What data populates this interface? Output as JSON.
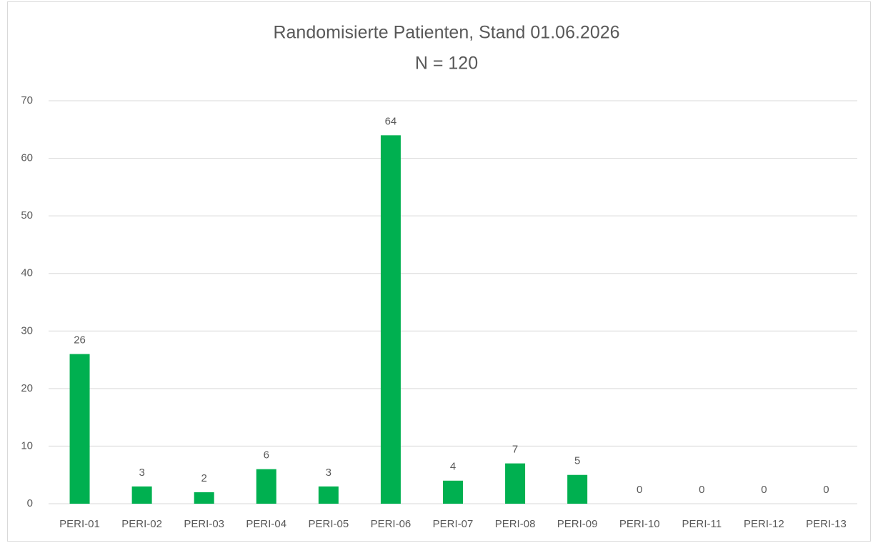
{
  "chart_data": {
    "type": "bar",
    "title": "Randomisierte Patienten, Stand 01.06.2026",
    "subtitle": "N = 120",
    "categories": [
      "PERI-01",
      "PERI-02",
      "PERI-03",
      "PERI-04",
      "PERI-05",
      "PERI-06",
      "PERI-07",
      "PERI-08",
      "PERI-09",
      "PERI-10",
      "PERI-11",
      "PERI-12",
      "PERI-13"
    ],
    "values": [
      26,
      3,
      2,
      6,
      3,
      64,
      4,
      7,
      5,
      0,
      0,
      0,
      0
    ],
    "color": "#00b050",
    "ylim": [
      0,
      70
    ],
    "yticks": [
      0,
      10,
      20,
      30,
      40,
      50,
      60,
      70
    ],
    "grid": true
  }
}
